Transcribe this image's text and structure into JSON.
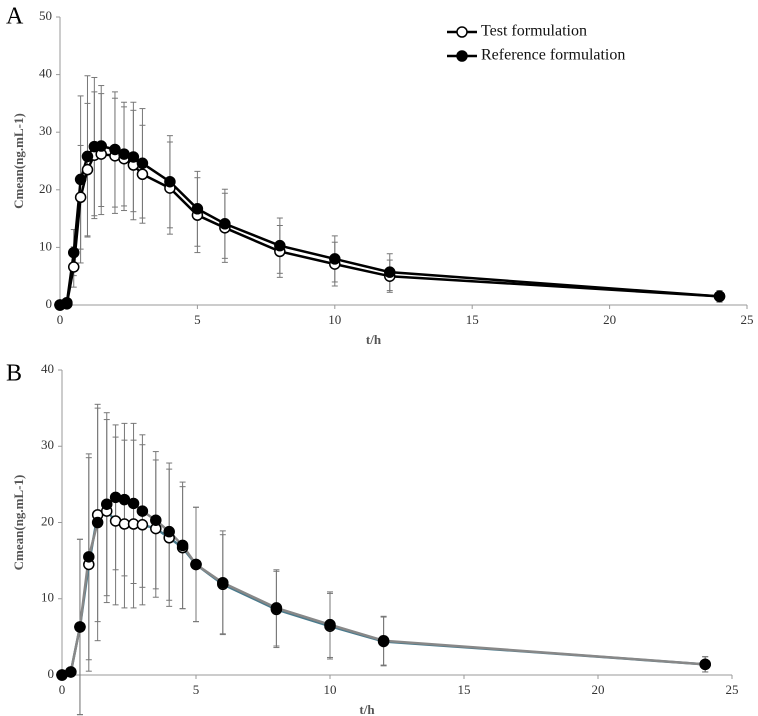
{
  "chart_data": [
    {
      "type": "line",
      "label": "A",
      "ylabel": "Cmean(ng.mL-1)",
      "xlabel": "t/h",
      "x": [
        0,
        0.25,
        0.5,
        0.75,
        1,
        1.25,
        1.5,
        2,
        2.33,
        2.67,
        3,
        4,
        5,
        6,
        8,
        10,
        12,
        24
      ],
      "series": [
        {
          "name": "Test formulation",
          "color": "#000000",
          "marker_color": "#ffffff",
          "values": [
            0,
            0.2,
            6.6,
            18.7,
            23.5,
            26.0,
            26.2,
            25.9,
            25.4,
            24.3,
            22.7,
            20.3,
            15.6,
            13.4,
            9.3,
            7.1,
            5.0,
            1.5
          ],
          "errors": [
            0,
            0.3,
            3.5,
            9,
            11.5,
            11,
            10.5,
            10,
            9,
            9.5,
            8.5,
            8,
            6.5,
            6,
            4.5,
            3.8,
            2.8,
            1
          ]
        },
        {
          "name": "Reference formulation",
          "color": "#000000",
          "marker_color": "#000000",
          "values": [
            0,
            0.4,
            9.1,
            21.8,
            25.8,
            27.5,
            27.6,
            27.0,
            26.2,
            25.7,
            24.6,
            21.4,
            16.7,
            14.1,
            10.3,
            8.0,
            5.7,
            1.5
          ],
          "errors": [
            0,
            0.3,
            4,
            14.5,
            14,
            12,
            10.5,
            10,
            9,
            9.5,
            9.5,
            8,
            6.5,
            6,
            4.8,
            4,
            3.2,
            1
          ]
        }
      ],
      "xlim": [
        0,
        25
      ],
      "ylim": [
        0,
        50
      ],
      "xticks": [
        0,
        5,
        10,
        15,
        20,
        25
      ],
      "yticks": [
        0,
        10,
        20,
        30,
        40,
        50
      ],
      "legend": "upper right"
    },
    {
      "type": "line",
      "label": "B",
      "ylabel": "Cmean(ng.mL-1)",
      "xlabel": "t/h",
      "x": [
        0,
        0.33,
        0.67,
        1,
        1.33,
        1.67,
        2,
        2.33,
        2.67,
        3,
        3.5,
        4,
        4.5,
        5,
        6,
        8,
        10,
        12,
        24
      ],
      "series": [
        {
          "color": "#4a7a8c",
          "marker_color": "#ffffff",
          "values": [
            0,
            0.4,
            6.3,
            14.5,
            21.0,
            21.5,
            20.2,
            19.8,
            19.8,
            19.7,
            19.2,
            18.0,
            16.7,
            14.5,
            11.9,
            8.6,
            6.4,
            4.4,
            1.4
          ],
          "errors": [
            0,
            0.3,
            11.5,
            14,
            14,
            12,
            11,
            11,
            11,
            10.5,
            9,
            9,
            8,
            7.5,
            6.5,
            5,
            4.3,
            3.2,
            1
          ]
        },
        {
          "color": "#888888",
          "marker_color": "#000000",
          "values": [
            0,
            0.4,
            6.3,
            15.5,
            20.0,
            22.4,
            23.3,
            23.0,
            22.5,
            21.5,
            20.3,
            18.8,
            17.0,
            14.5,
            12.1,
            8.8,
            6.6,
            4.5,
            1.4
          ],
          "errors": [
            0,
            0.3,
            11.5,
            13.5,
            15.5,
            12,
            9.5,
            10,
            10.5,
            10,
            9,
            9,
            8.3,
            7.5,
            6.8,
            5,
            4.3,
            3.2,
            1
          ]
        }
      ],
      "xlim": [
        0,
        25
      ],
      "ylim": [
        0,
        40
      ],
      "xticks": [
        0,
        5,
        10,
        15,
        20,
        25
      ],
      "yticks": [
        0,
        10,
        20,
        30,
        40
      ]
    }
  ]
}
